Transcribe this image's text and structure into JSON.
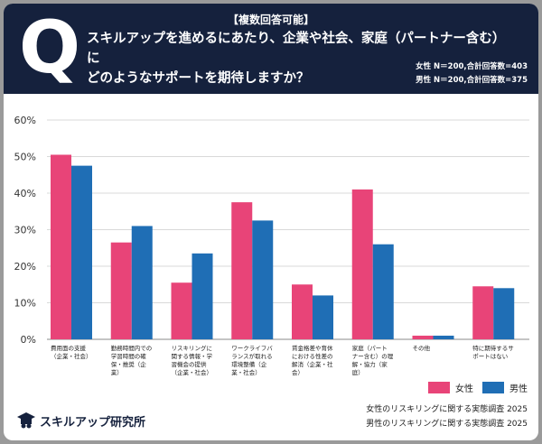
{
  "header": {
    "q_letter": "Q",
    "tag": "【複数回答可能】",
    "question_line1": "スキルアップを進めるにあたり、企業や社会、家庭（パートナー含む）に",
    "question_line2": "どのようなサポートを期待しますか？",
    "sample_female": "女性 N＝200,合計回答数=403",
    "sample_male": "男性 N＝200,合計回答数=375"
  },
  "colors": {
    "female": "#e84478",
    "male": "#1f6eb5",
    "header_bg": "#15213d"
  },
  "legend": {
    "female": "女性",
    "male": "男性"
  },
  "footer": {
    "brand": "スキルアップ研究所",
    "source1": "女性のリスキリングに関する実態調査 2025",
    "source2": "男性のリスキリングに関する実態調査 2025"
  },
  "chart_data": {
    "type": "bar",
    "ylim": [
      0,
      60
    ],
    "yticks": [
      "0%",
      "10%",
      "20%",
      "30%",
      "40%",
      "50%",
      "60%"
    ],
    "categories": [
      [
        "費用面の支援",
        "（企業・社会）"
      ],
      [
        "勤務時間内での",
        "学習時間の確",
        "保・推奨（企",
        "業）"
      ],
      [
        "リスキリングに",
        "関する情報・学",
        "習機会の提供",
        "（企業・社会）"
      ],
      [
        "ワークライフバ",
        "ランスが取れる",
        "環境整備（企",
        "業・社会）"
      ],
      [
        "賃金格差や育休",
        "における性差の",
        "解消（企業・社",
        "会）"
      ],
      [
        "家庭（パート",
        "ナー含む）の理",
        "解・協力（家",
        "庭）"
      ],
      [
        "その他"
      ],
      [
        "特に期待するサ",
        "ポートはない"
      ]
    ],
    "series": [
      {
        "name": "女性",
        "values": [
          50.5,
          26.5,
          15.5,
          37.5,
          15.0,
          41.0,
          1.0,
          14.5
        ]
      },
      {
        "name": "男性",
        "values": [
          47.5,
          31.0,
          23.5,
          32.5,
          12.0,
          26.0,
          1.0,
          14.0
        ]
      }
    ]
  }
}
